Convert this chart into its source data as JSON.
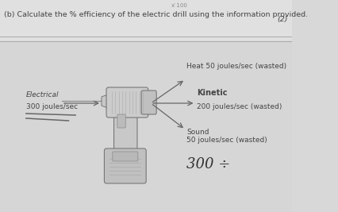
{
  "title_text": "(b) Calculate the % efficiency of the electric drill using the information provided.",
  "mark_text": "(2)",
  "background_color": "#d8d8d8",
  "header_bg": "#e8e8e8",
  "electrical_label": "Electrical",
  "electrical_value": "300 joules/sec",
  "heat_label": "Heat 50 joules/sec (wasted)",
  "kinetic_label": "Kinetic",
  "kinetic_value": "200 joules/sec (wasted)",
  "sound_label": "Sound",
  "sound_value": "50 joules/sec (wasted)",
  "handwritten_text": "300 ÷",
  "arrow_color": "#666666",
  "text_color": "#444444",
  "title_fontsize": 6.8,
  "body_fontsize": 6.5,
  "hw_fontsize": 13
}
